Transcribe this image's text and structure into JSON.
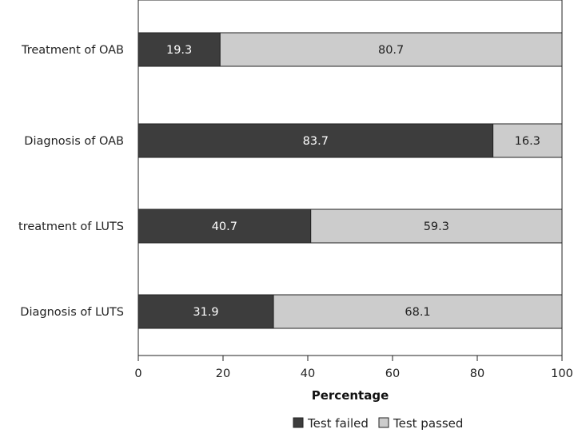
{
  "chart_data": {
    "type": "bar",
    "orientation": "horizontal",
    "stacked": true,
    "categories": [
      "Treatment of OAB",
      "Diagnosis of OAB",
      "treatment of LUTS",
      "Diagnosis of LUTS"
    ],
    "series": [
      {
        "name": "Test failed",
        "values": [
          19.3,
          83.7,
          40.7,
          31.9
        ],
        "color": "#3d3d3d",
        "label_color": "#ffffff"
      },
      {
        "name": "Test passed",
        "values": [
          80.7,
          16.3,
          59.3,
          68.1
        ],
        "color": "#cccccc",
        "label_color": "#222222"
      }
    ],
    "xlabel": "Percentage",
    "xlim": [
      0,
      100
    ],
    "xticks": [
      0,
      20,
      40,
      60,
      80,
      100
    ],
    "grid": false,
    "legend_position": "bottom"
  }
}
